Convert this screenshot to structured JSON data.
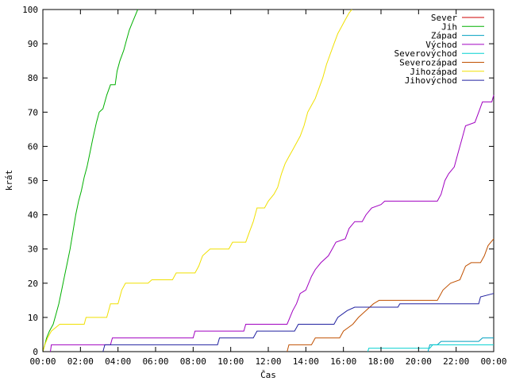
{
  "chart_data": {
    "type": "line",
    "xlabel": "Čas",
    "ylabel": "krát",
    "xlim": [
      0,
      24
    ],
    "ylim": [
      0,
      100
    ],
    "grid": false,
    "legend_position": "top-right",
    "x_ticks": [
      "00:00",
      "02:00",
      "04:00",
      "06:00",
      "08:00",
      "10:00",
      "12:00",
      "14:00",
      "16:00",
      "18:00",
      "20:00",
      "22:00",
      "00:00"
    ],
    "y_ticks": [
      "0",
      "10",
      "20",
      "30",
      "40",
      "50",
      "60",
      "70",
      "80",
      "90",
      "100"
    ],
    "series": [
      {
        "name": "Sever",
        "color": "#cc0000",
        "points": []
      },
      {
        "name": "Jih",
        "color": "#00b000",
        "points": [
          [
            0,
            0
          ],
          [
            0.1,
            2
          ],
          [
            0.2,
            4
          ],
          [
            0.35,
            6
          ],
          [
            0.55,
            8
          ],
          [
            0.7,
            11
          ],
          [
            0.85,
            14
          ],
          [
            1.0,
            18
          ],
          [
            1.15,
            22
          ],
          [
            1.3,
            26
          ],
          [
            1.45,
            30
          ],
          [
            1.6,
            35
          ],
          [
            1.75,
            40
          ],
          [
            1.9,
            44
          ],
          [
            2.05,
            47
          ],
          [
            2.2,
            51
          ],
          [
            2.35,
            54
          ],
          [
            2.5,
            58
          ],
          [
            2.65,
            62
          ],
          [
            2.85,
            67
          ],
          [
            3.0,
            70
          ],
          [
            3.2,
            71
          ],
          [
            3.4,
            75
          ],
          [
            3.6,
            78
          ],
          [
            3.85,
            78
          ],
          [
            3.95,
            82
          ],
          [
            4.1,
            85
          ],
          [
            4.3,
            88
          ],
          [
            4.45,
            91
          ],
          [
            4.6,
            94
          ],
          [
            4.75,
            96
          ],
          [
            4.9,
            98
          ],
          [
            5.05,
            100
          ]
        ]
      },
      {
        "name": "Západ",
        "color": "#00a0c0",
        "points": [
          [
            20.5,
            0
          ],
          [
            20.6,
            2
          ],
          [
            21.0,
            2
          ],
          [
            21.2,
            3
          ],
          [
            23.2,
            3
          ],
          [
            23.4,
            4
          ],
          [
            24,
            4
          ]
        ]
      },
      {
        "name": "Východ",
        "color": "#a000c0",
        "points": [
          [
            0.4,
            0
          ],
          [
            0.45,
            2
          ],
          [
            3.6,
            2
          ],
          [
            3.7,
            4
          ],
          [
            8.0,
            4
          ],
          [
            8.1,
            6
          ],
          [
            10.7,
            6
          ],
          [
            10.8,
            8
          ],
          [
            13.0,
            8
          ],
          [
            13.3,
            12
          ],
          [
            13.5,
            14
          ],
          [
            13.7,
            17
          ],
          [
            14.0,
            18
          ],
          [
            14.3,
            22
          ],
          [
            14.5,
            24
          ],
          [
            14.8,
            26
          ],
          [
            15.2,
            28
          ],
          [
            15.4,
            30
          ],
          [
            15.6,
            32
          ],
          [
            16.1,
            33
          ],
          [
            16.3,
            36
          ],
          [
            16.6,
            38
          ],
          [
            17.0,
            38
          ],
          [
            17.2,
            40
          ],
          [
            17.5,
            42
          ],
          [
            18.0,
            43
          ],
          [
            18.2,
            44
          ],
          [
            21.0,
            44
          ],
          [
            21.2,
            46
          ],
          [
            21.4,
            50
          ],
          [
            21.6,
            52
          ],
          [
            21.9,
            54
          ],
          [
            22.1,
            58
          ],
          [
            22.3,
            62
          ],
          [
            22.5,
            66
          ],
          [
            23.0,
            67
          ],
          [
            23.2,
            70
          ],
          [
            23.4,
            73
          ],
          [
            23.9,
            73
          ],
          [
            24,
            75
          ]
        ]
      },
      {
        "name": "Severovýchod",
        "color": "#00d0d0",
        "points": [
          [
            17.3,
            0
          ],
          [
            17.35,
            1
          ],
          [
            20.6,
            1
          ],
          [
            20.75,
            2
          ],
          [
            24,
            2
          ]
        ]
      },
      {
        "name": "Severozápad",
        "color": "#c05000",
        "points": [
          [
            13.0,
            0
          ],
          [
            13.1,
            2
          ],
          [
            14.3,
            2
          ],
          [
            14.5,
            4
          ],
          [
            15.8,
            4
          ],
          [
            16.0,
            6
          ],
          [
            16.5,
            8
          ],
          [
            16.8,
            10
          ],
          [
            17.2,
            12
          ],
          [
            17.6,
            14
          ],
          [
            17.9,
            15
          ],
          [
            21.0,
            15
          ],
          [
            21.3,
            18
          ],
          [
            21.7,
            20
          ],
          [
            22.2,
            21
          ],
          [
            22.5,
            25
          ],
          [
            22.8,
            26
          ],
          [
            23.3,
            26
          ],
          [
            23.5,
            28
          ],
          [
            23.7,
            31
          ],
          [
            24,
            33
          ]
        ]
      },
      {
        "name": "Jihozápad",
        "color": "#f0e000",
        "points": [
          [
            0,
            0
          ],
          [
            0.1,
            2
          ],
          [
            0.25,
            4
          ],
          [
            0.45,
            6
          ],
          [
            0.9,
            8
          ],
          [
            2.2,
            8
          ],
          [
            2.3,
            10
          ],
          [
            3.4,
            10
          ],
          [
            3.6,
            14
          ],
          [
            4.0,
            14
          ],
          [
            4.2,
            18
          ],
          [
            4.4,
            20
          ],
          [
            5.6,
            20
          ],
          [
            5.8,
            21
          ],
          [
            6.9,
            21
          ],
          [
            7.1,
            23
          ],
          [
            8.1,
            23
          ],
          [
            8.3,
            25
          ],
          [
            8.5,
            28
          ],
          [
            8.7,
            29
          ],
          [
            8.9,
            30
          ],
          [
            9.9,
            30
          ],
          [
            10.1,
            32
          ],
          [
            10.8,
            32
          ],
          [
            11.0,
            35
          ],
          [
            11.2,
            38
          ],
          [
            11.4,
            42
          ],
          [
            11.8,
            42
          ],
          [
            12.0,
            44
          ],
          [
            12.3,
            46
          ],
          [
            12.5,
            48
          ],
          [
            12.7,
            52
          ],
          [
            12.9,
            55
          ],
          [
            13.1,
            57
          ],
          [
            13.3,
            59
          ],
          [
            13.5,
            61
          ],
          [
            13.7,
            63
          ],
          [
            13.9,
            66
          ],
          [
            14.1,
            70
          ],
          [
            14.3,
            72
          ],
          [
            14.5,
            74
          ],
          [
            14.7,
            77
          ],
          [
            14.9,
            80
          ],
          [
            15.1,
            84
          ],
          [
            15.3,
            87
          ],
          [
            15.5,
            90
          ],
          [
            15.7,
            93
          ],
          [
            15.9,
            95
          ],
          [
            16.1,
            97
          ],
          [
            16.3,
            99
          ],
          [
            16.45,
            100
          ]
        ]
      },
      {
        "name": "Jihovýchod",
        "color": "#2020a0",
        "points": [
          [
            3.2,
            0
          ],
          [
            3.3,
            2
          ],
          [
            9.3,
            2
          ],
          [
            9.4,
            4
          ],
          [
            11.2,
            4
          ],
          [
            11.4,
            6
          ],
          [
            13.4,
            6
          ],
          [
            13.6,
            8
          ],
          [
            15.5,
            8
          ],
          [
            15.7,
            10
          ],
          [
            16.2,
            12
          ],
          [
            16.6,
            13
          ],
          [
            18.9,
            13
          ],
          [
            19.0,
            14
          ],
          [
            23.2,
            14
          ],
          [
            23.3,
            16
          ],
          [
            24,
            17
          ]
        ]
      }
    ]
  }
}
